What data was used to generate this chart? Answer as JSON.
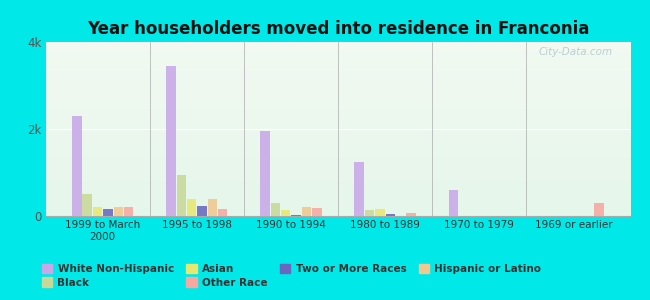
{
  "title": "Year householders moved into residence in Franconia",
  "categories": [
    "1999 to March\n2000",
    "1995 to 1998",
    "1990 to 1994",
    "1980 to 1989",
    "1970 to 1979",
    "1969 or earlier"
  ],
  "series": {
    "White Non-Hispanic": [
      2300,
      3450,
      1950,
      1250,
      600,
      0
    ],
    "Black": [
      500,
      950,
      300,
      130,
      0,
      0
    ],
    "Asian": [
      200,
      400,
      130,
      150,
      0,
      0
    ],
    "Two or More Races": [
      160,
      230,
      30,
      40,
      0,
      0
    ],
    "Hispanic or Latino": [
      210,
      380,
      200,
      0,
      0,
      0
    ],
    "Other Race": [
      200,
      150,
      180,
      80,
      0,
      300
    ]
  },
  "colors": {
    "White Non-Hispanic": "#c8a8e8",
    "Black": "#c8d898",
    "Asian": "#e8e870",
    "Two or More Races": "#6868c0",
    "Hispanic or Latino": "#f0c890",
    "Other Race": "#f8a8a0"
  },
  "ylim": [
    0,
    4000
  ],
  "yticks": [
    0,
    2000,
    4000
  ],
  "ytick_labels": [
    "0",
    "2k",
    "4k"
  ],
  "background_color": "#00e8e8",
  "watermark": "City-Data.com",
  "legend_order": [
    "White Non-Hispanic",
    "Black",
    "Asian",
    "Other Race",
    "Two or More Races",
    "Hispanic or Latino"
  ]
}
